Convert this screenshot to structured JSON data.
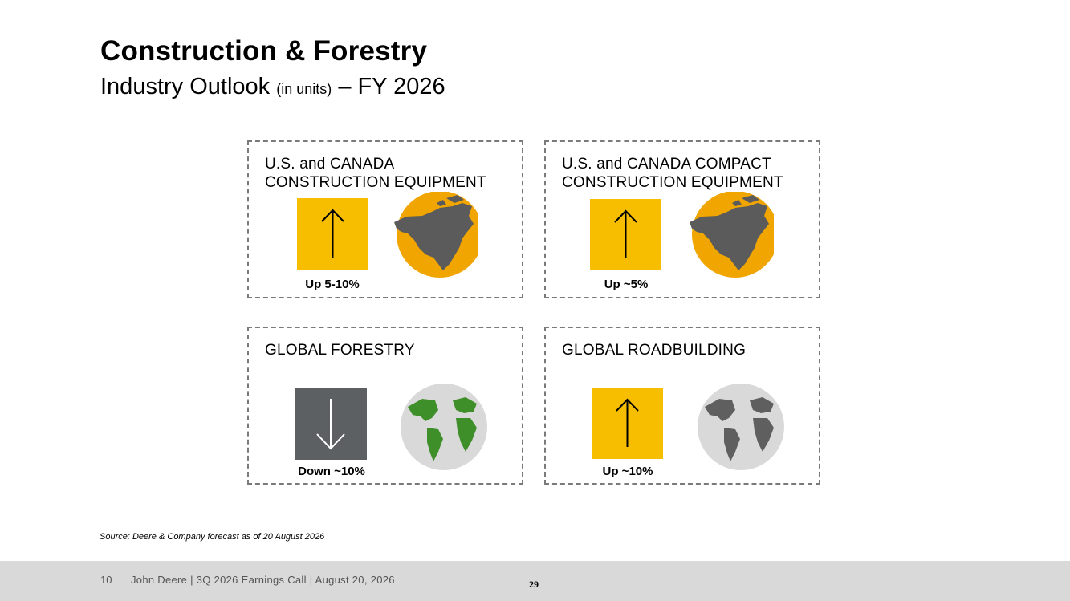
{
  "header": {
    "title": "Construction & Forestry",
    "subtitle_main": "Industry Outlook",
    "subtitle_units": "(in units)",
    "subtitle_period": "– FY 2026"
  },
  "panels": [
    {
      "line1": "U.S. and CANADA",
      "line2": "CONSTRUCTION EQUIPMENT",
      "metric": "Up 5-10%",
      "direction": "up",
      "icon": "north-america-globe-icon"
    },
    {
      "line1": "U.S. and CANADA COMPACT",
      "line2": "CONSTRUCTION EQUIPMENT",
      "metric": "Up ~5%",
      "direction": "up",
      "icon": "north-america-globe-icon"
    },
    {
      "line1": "GLOBAL FORESTRY",
      "line2": "",
      "metric": "Down ~10%",
      "direction": "down",
      "icon": "green-world-globe-icon"
    },
    {
      "line1": "GLOBAL ROADBUILDING",
      "line2": "",
      "metric": "Up ~10%",
      "direction": "up",
      "icon": "gray-world-globe-icon"
    }
  ],
  "colors": {
    "up_arrow_bg": "#f7be00",
    "down_arrow_bg": "#5c6063",
    "globe_orange": "#f0a500",
    "forest_green": "#3e8e2a",
    "footer_bg": "#d9d9d9"
  },
  "source": "Source: Deere & Company forecast as of 20 August 2026",
  "footer": {
    "slide_number": "10",
    "text": "John Deere | 3Q 2026 Earnings Call | August 20, 2026",
    "page_number": "29"
  }
}
